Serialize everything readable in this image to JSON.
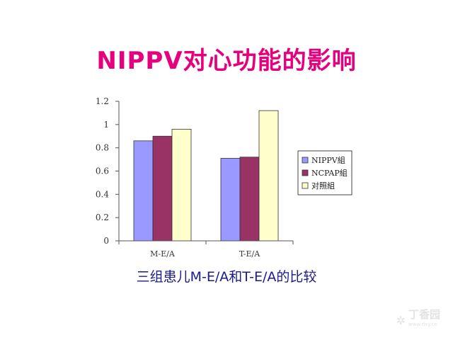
{
  "slide": {
    "title": "NIPPV对心功能的影响",
    "caption": "三组患儿M-E/A和T-E/A的比较",
    "watermark": "丁香园",
    "watermark_url": "www.dxy.cn"
  },
  "chart_data": {
    "type": "bar",
    "title": "",
    "xlabel": "",
    "ylabel": "",
    "categories": [
      "M-E/A",
      "T-E/A"
    ],
    "ylim": [
      0,
      1.2
    ],
    "yticks": [
      "1.2",
      "1",
      "0.8",
      "0.6",
      "0.4",
      "0.2",
      "0"
    ],
    "ytick_values": [
      1.2,
      1.0,
      0.8,
      0.6,
      0.4,
      0.2,
      0
    ],
    "grid": false,
    "legend_position": "right",
    "series": [
      {
        "name": "NIPPV組",
        "values": [
          0.86,
          0.71
        ],
        "color": "#9999ff"
      },
      {
        "name": "NCPAP組",
        "values": [
          0.9,
          0.72
        ],
        "color": "#993366"
      },
      {
        "name": "对照組",
        "values": [
          0.96,
          1.12
        ],
        "color": "#ffffcc"
      }
    ]
  }
}
